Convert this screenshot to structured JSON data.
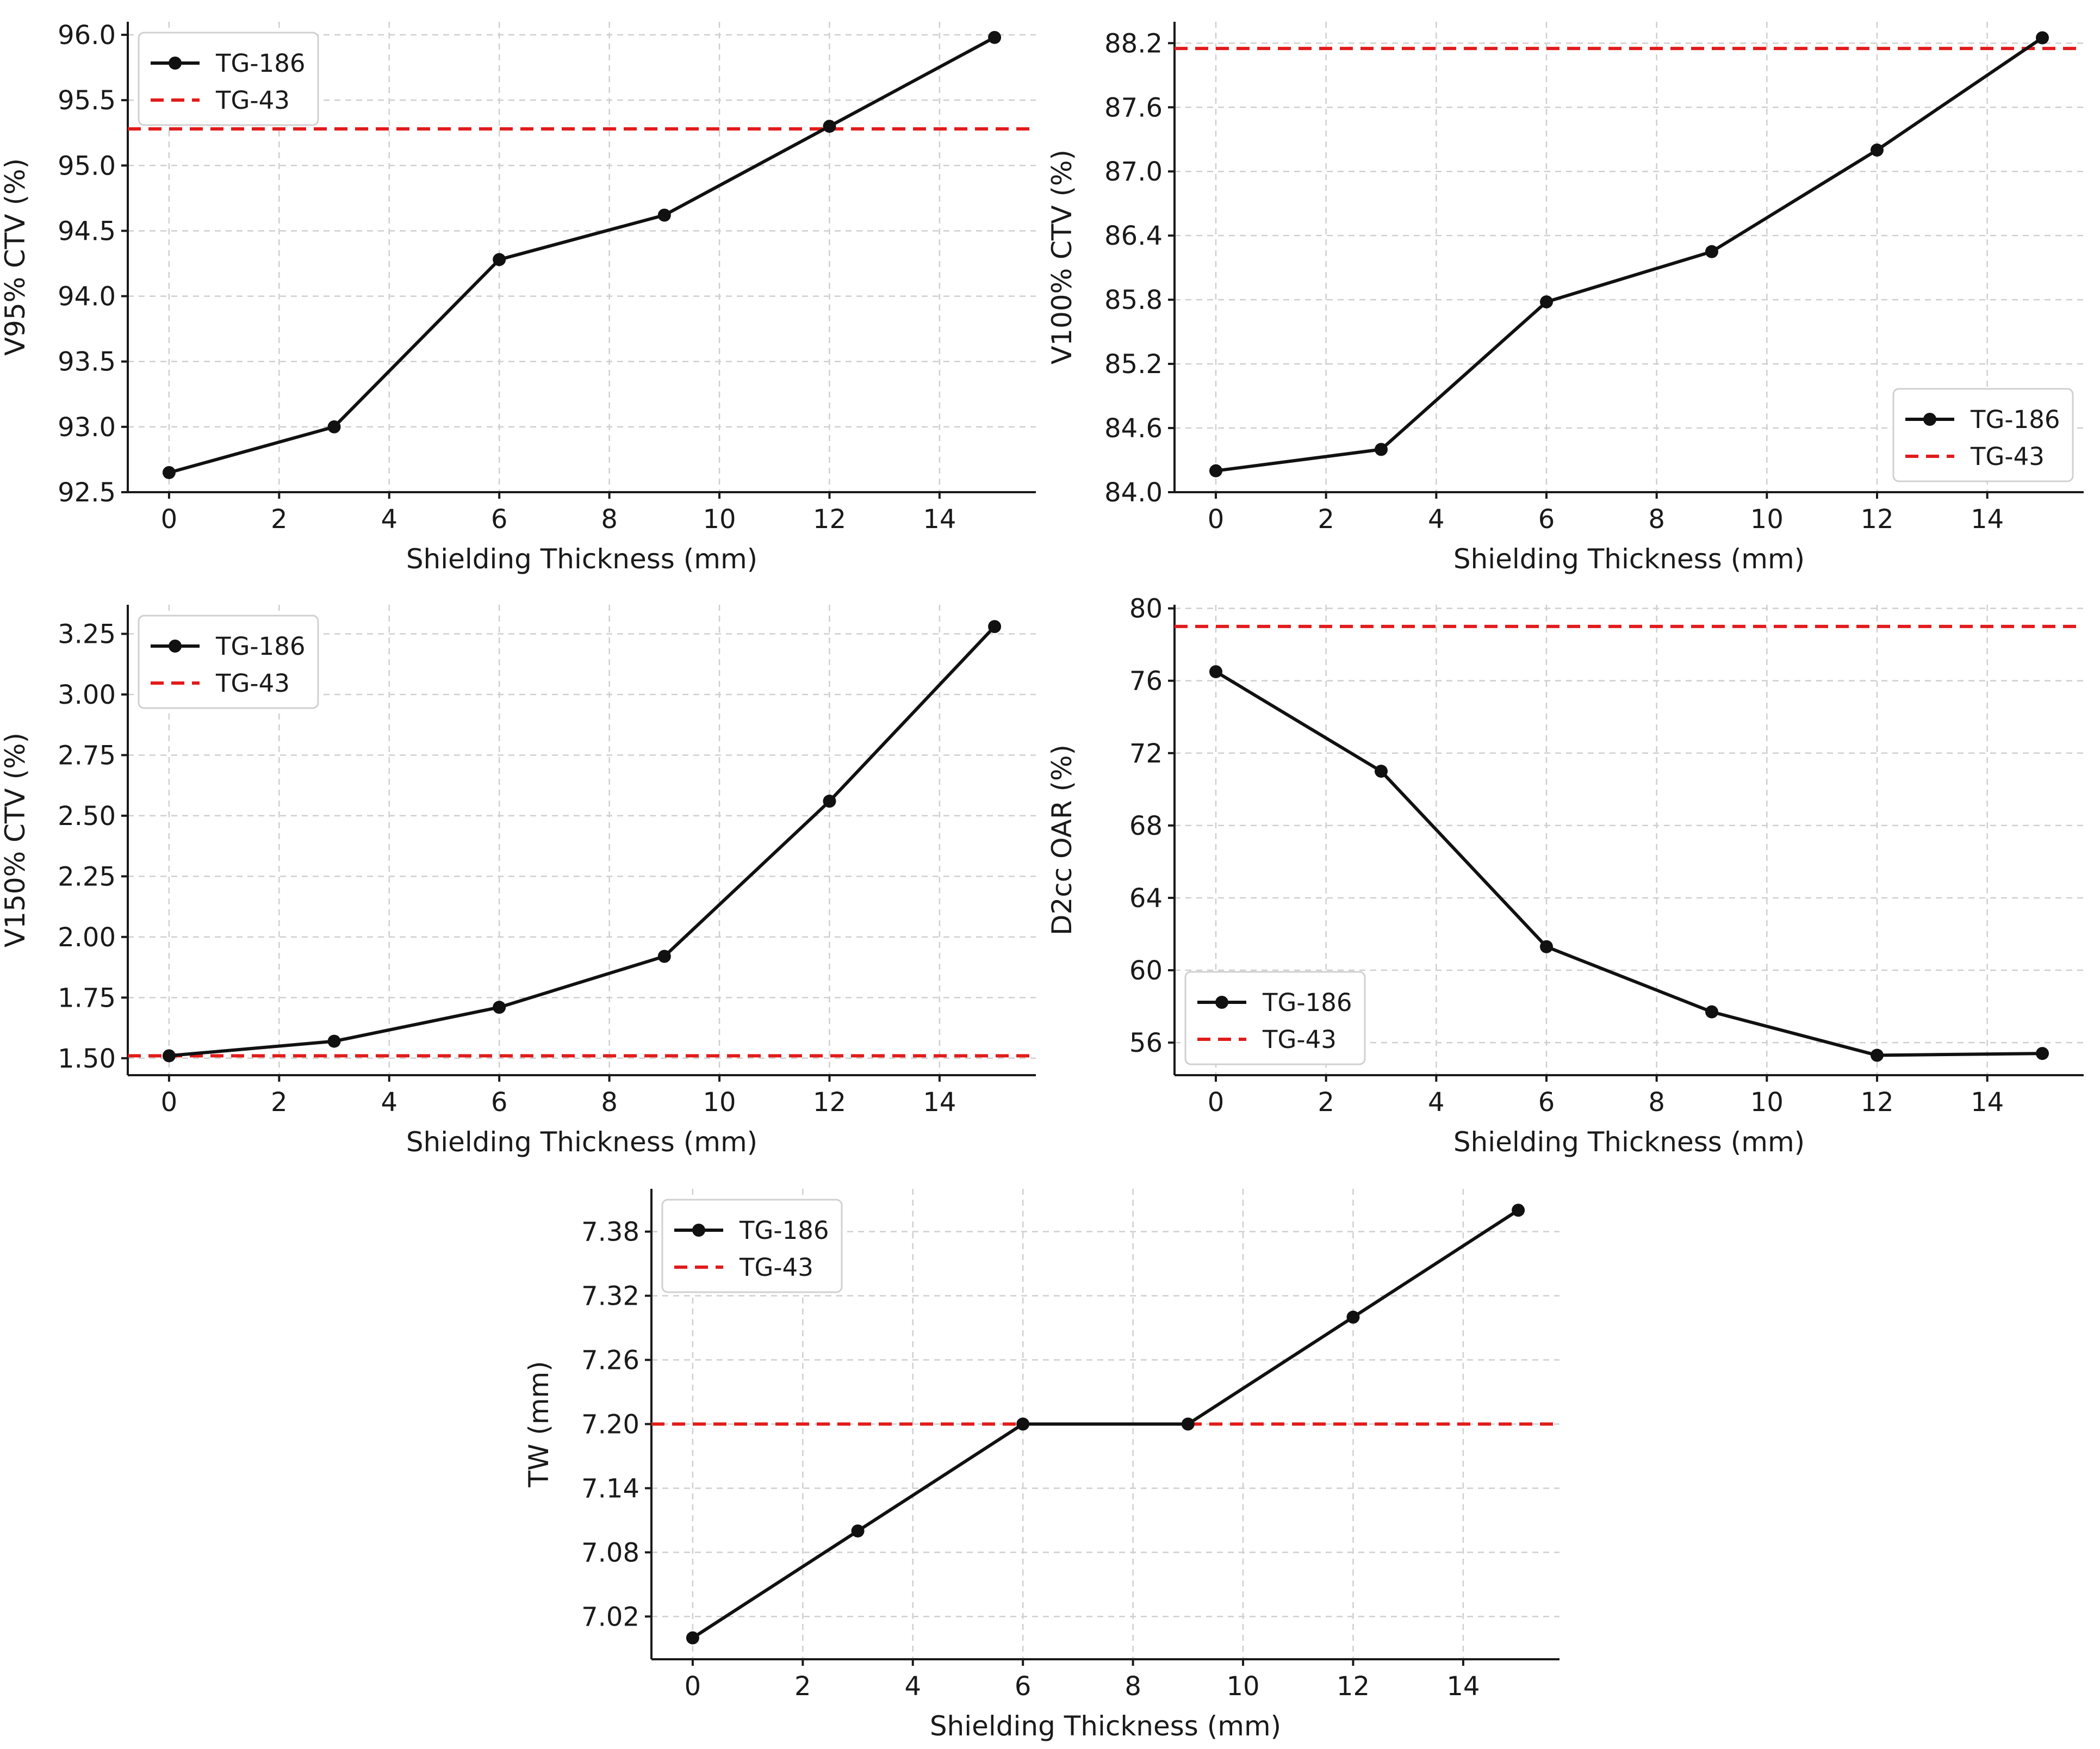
{
  "chart_data": [
    {
      "type": "line",
      "xlabel": "Shielding Thickness (mm)",
      "ylabel": "V95% CTV (%)",
      "x": [
        0,
        3,
        6,
        9,
        12,
        15
      ],
      "xlim": [
        -0.75,
        15.75
      ],
      "xticks": [
        0,
        2,
        4,
        6,
        8,
        10,
        12,
        14
      ],
      "ylim": [
        92.5,
        96.1
      ],
      "yticks": [
        "92.5",
        "93.0",
        "93.5",
        "94.0",
        "94.5",
        "95.0",
        "95.5",
        "96.0"
      ],
      "series": [
        {
          "name": "TG-186",
          "values": [
            92.65,
            93.0,
            94.28,
            94.62,
            95.3,
            95.98
          ]
        }
      ],
      "reference_line": {
        "name": "TG-43",
        "value": 95.28
      },
      "legend_position": "upper-left",
      "grid": true
    },
    {
      "type": "line",
      "xlabel": "Shielding Thickness (mm)",
      "ylabel": "V100% CTV (%)",
      "x": [
        0,
        3,
        6,
        9,
        12,
        15
      ],
      "xlim": [
        -0.75,
        15.75
      ],
      "xticks": [
        0,
        2,
        4,
        6,
        8,
        10,
        12,
        14
      ],
      "ylim": [
        84.0,
        88.4
      ],
      "yticks": [
        "84.0",
        "84.6",
        "85.2",
        "85.8",
        "86.4",
        "87.0",
        "87.6",
        "88.2"
      ],
      "series": [
        {
          "name": "TG-186",
          "values": [
            84.2,
            84.4,
            85.78,
            86.25,
            87.2,
            88.25
          ]
        }
      ],
      "reference_line": {
        "name": "TG-43",
        "value": 88.15
      },
      "legend_position": "lower-right",
      "grid": true
    },
    {
      "type": "line",
      "xlabel": "Shielding Thickness (mm)",
      "ylabel": "V150% CTV (%)",
      "x": [
        0,
        3,
        6,
        9,
        12,
        15
      ],
      "xlim": [
        -0.75,
        15.75
      ],
      "xticks": [
        0,
        2,
        4,
        6,
        8,
        10,
        12,
        14
      ],
      "ylim": [
        1.43,
        3.37
      ],
      "yticks": [
        "1.50",
        "1.75",
        "2.00",
        "2.25",
        "2.50",
        "2.75",
        "3.00",
        "3.25"
      ],
      "series": [
        {
          "name": "TG-186",
          "values": [
            1.51,
            1.57,
            1.71,
            1.92,
            2.56,
            3.28
          ]
        }
      ],
      "reference_line": {
        "name": "TG-43",
        "value": 1.51
      },
      "legend_position": "upper-left",
      "grid": true
    },
    {
      "type": "line",
      "xlabel": "Shielding Thickness (mm)",
      "ylabel": "D2cc OAR (%)",
      "x": [
        0,
        3,
        6,
        9,
        12,
        15
      ],
      "xlim": [
        -0.75,
        15.75
      ],
      "xticks": [
        0,
        2,
        4,
        6,
        8,
        10,
        12,
        14
      ],
      "ylim": [
        54.2,
        80.2
      ],
      "yticks": [
        "56",
        "60",
        "64",
        "68",
        "72",
        "76",
        "80"
      ],
      "series": [
        {
          "name": "TG-186",
          "values": [
            76.5,
            71.0,
            61.3,
            57.7,
            55.3,
            55.4
          ]
        }
      ],
      "reference_line": {
        "name": "TG-43",
        "value": 79.0
      },
      "legend_position": "lower-left",
      "grid": true
    },
    {
      "type": "line",
      "xlabel": "Shielding Thickness (mm)",
      "ylabel": "TW (mm)",
      "x": [
        0,
        3,
        6,
        9,
        12,
        15
      ],
      "xlim": [
        -0.75,
        15.75
      ],
      "xticks": [
        0,
        2,
        4,
        6,
        8,
        10,
        12,
        14
      ],
      "ylim": [
        6.98,
        7.42
      ],
      "yticks": [
        "7.02",
        "7.08",
        "7.14",
        "7.20",
        "7.26",
        "7.32",
        "7.38"
      ],
      "series": [
        {
          "name": "TG-186",
          "values": [
            7.0,
            7.1,
            7.2,
            7.2,
            7.3,
            7.4
          ]
        }
      ],
      "reference_line": {
        "name": "TG-43",
        "value": 7.2
      },
      "legend_position": "upper-left",
      "grid": true
    }
  ],
  "colors": {
    "series": "#111111",
    "reference": "#e21b1b",
    "grid": "#cfcfcf"
  }
}
